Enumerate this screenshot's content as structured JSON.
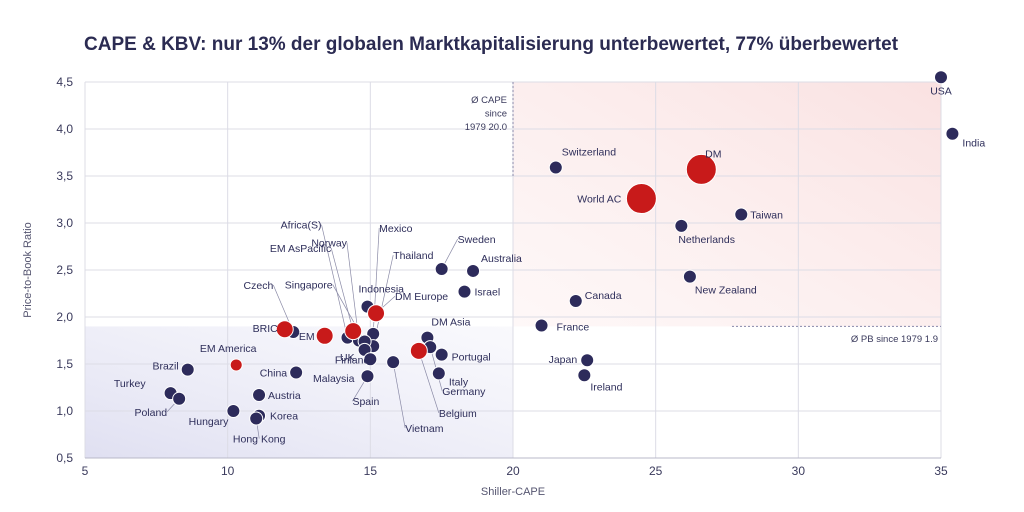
{
  "title": "CAPE & KBV: nur 13% der globalen Marktkapitalisierung unterbewertet, 77% überbewertet",
  "colors": {
    "market": "#2d2b5b",
    "aggregate": "#c81a1a",
    "text": "#2e2e5a",
    "grid": "#dcdce6"
  },
  "chart_data": {
    "type": "scatter",
    "xlabel": "Shiller-CAPE",
    "ylabel": "Price-to-Book Ratio",
    "xlim": [
      5,
      35
    ],
    "ylim": [
      0.5,
      4.5
    ],
    "xticks": [
      5,
      10,
      15,
      20,
      25,
      30,
      35
    ],
    "yticks": [
      0.5,
      1.0,
      1.5,
      2.0,
      2.5,
      3.0,
      3.5,
      4.0,
      4.5
    ],
    "yticklabels": [
      "0,5",
      "1,0",
      "1,5",
      "2,0",
      "2,5",
      "3,0",
      "3,5",
      "4,0",
      "4,5"
    ],
    "grid": true,
    "reference_lines": [
      {
        "axis": "x",
        "value": 20.0,
        "label_lines": [
          "Ø CAPE",
          "since",
          "1979 20.0"
        ]
      },
      {
        "axis": "y",
        "value": 1.9,
        "label": "Ø PB since 1979 1.9"
      }
    ],
    "points": [
      {
        "label": "USA",
        "x": 35.0,
        "y": 4.55,
        "kind": "market",
        "size": 1
      },
      {
        "label": "India",
        "x": 35.4,
        "y": 3.95,
        "kind": "market",
        "size": 1
      },
      {
        "label": "DM",
        "x": 26.6,
        "y": 3.57,
        "kind": "aggregate",
        "size": 3
      },
      {
        "label": "World AC",
        "x": 24.5,
        "y": 3.26,
        "kind": "aggregate",
        "size": 3
      },
      {
        "label": "Switzerland",
        "x": 21.5,
        "y": 3.59,
        "kind": "market",
        "size": 1
      },
      {
        "label": "Taiwan",
        "x": 28.0,
        "y": 3.09,
        "kind": "market",
        "size": 1
      },
      {
        "label": "Netherlands",
        "x": 25.9,
        "y": 2.97,
        "kind": "market",
        "size": 1
      },
      {
        "label": "New Zealand",
        "x": 26.2,
        "y": 2.43,
        "kind": "market",
        "size": 1
      },
      {
        "label": "Canada",
        "x": 22.2,
        "y": 2.17,
        "kind": "market",
        "size": 1
      },
      {
        "label": "France",
        "x": 21.0,
        "y": 1.91,
        "kind": "market",
        "size": 1
      },
      {
        "label": "Japan",
        "x": 22.6,
        "y": 1.54,
        "kind": "market",
        "size": 1
      },
      {
        "label": "Ireland",
        "x": 22.5,
        "y": 1.38,
        "kind": "market",
        "size": 1
      },
      {
        "label": "Sweden",
        "x": 17.5,
        "y": 2.51,
        "kind": "market",
        "size": 1
      },
      {
        "label": "Australia",
        "x": 18.6,
        "y": 2.49,
        "kind": "market",
        "size": 1
      },
      {
        "label": "Israel",
        "x": 18.3,
        "y": 2.27,
        "kind": "market",
        "size": 1
      },
      {
        "label": "Indonesia",
        "x": 14.9,
        "y": 2.11,
        "kind": "market",
        "size": 1
      },
      {
        "label": "DM Europe",
        "x": 15.2,
        "y": 2.04,
        "kind": "aggregate",
        "size": 2
      },
      {
        "label": "DM Asia",
        "x": 17.0,
        "y": 1.78,
        "kind": "market",
        "size": 1
      },
      {
        "label": "Portugal",
        "x": 17.5,
        "y": 1.6,
        "kind": "market",
        "size": 1
      },
      {
        "label": "Italy",
        "x": 17.4,
        "y": 1.4,
        "kind": "market",
        "size": 1
      },
      {
        "label": "Germany",
        "x": 17.1,
        "y": 1.68,
        "kind": "market",
        "size": 1
      },
      {
        "label": "Belgium",
        "x": 16.7,
        "y": 1.64,
        "kind": "aggregate",
        "size": 2
      },
      {
        "label": "Vietnam",
        "x": 15.8,
        "y": 1.52,
        "kind": "market",
        "size": 1
      },
      {
        "label": "Spain",
        "x": 14.9,
        "y": 1.37,
        "kind": "market",
        "size": 1
      },
      {
        "label": "Africa(S)",
        "x": 14.2,
        "y": 1.78,
        "kind": "market",
        "size": 1
      },
      {
        "label": "Mexico",
        "x": 15.1,
        "y": 1.82,
        "kind": "market",
        "size": 1
      },
      {
        "label": "Thailand",
        "x": 15.1,
        "y": 1.69,
        "kind": "market",
        "size": 1
      },
      {
        "label": "Norway",
        "x": 14.6,
        "y": 1.75,
        "kind": "market",
        "size": 1
      },
      {
        "label": "EM AsPacific",
        "x": 14.4,
        "y": 1.85,
        "kind": "aggregate",
        "size": 2
      },
      {
        "label": "Singapore",
        "x": 14.8,
        "y": 1.74,
        "kind": "market",
        "size": 1
      },
      {
        "label": "UK",
        "x": 14.8,
        "y": 1.65,
        "kind": "market",
        "size": 1
      },
      {
        "label": "Finland",
        "x": 15.0,
        "y": 1.55,
        "kind": "market",
        "size": 1
      },
      {
        "label": "Malaysia",
        "x": 14.9,
        "y": 1.37,
        "kind": "market",
        "size": 1
      },
      {
        "label": "EM",
        "x": 13.4,
        "y": 1.8,
        "kind": "aggregate",
        "size": 2
      },
      {
        "label": "Czech",
        "x": 12.3,
        "y": 1.84,
        "kind": "market",
        "size": 1
      },
      {
        "label": "BRIC",
        "x": 12.0,
        "y": 1.87,
        "kind": "aggregate",
        "size": 2
      },
      {
        "label": "China",
        "x": 12.4,
        "y": 1.41,
        "kind": "market",
        "size": 1
      },
      {
        "label": "EM America",
        "x": 10.3,
        "y": 1.49,
        "kind": "aggregate",
        "size": 1
      },
      {
        "label": "Brazil",
        "x": 8.6,
        "y": 1.44,
        "kind": "market",
        "size": 1
      },
      {
        "label": "Turkey",
        "x": 8.0,
        "y": 1.19,
        "kind": "market",
        "size": 1
      },
      {
        "label": "Poland",
        "x": 8.3,
        "y": 1.13,
        "kind": "market",
        "size": 1
      },
      {
        "label": "Austria",
        "x": 11.1,
        "y": 1.17,
        "kind": "market",
        "size": 1
      },
      {
        "label": "Hungary",
        "x": 10.2,
        "y": 1.0,
        "kind": "market",
        "size": 1
      },
      {
        "label": "Korea",
        "x": 11.1,
        "y": 0.95,
        "kind": "market",
        "size": 1
      },
      {
        "label": "Hong Kong",
        "x": 11.0,
        "y": 0.92,
        "kind": "market",
        "size": 1
      }
    ]
  }
}
